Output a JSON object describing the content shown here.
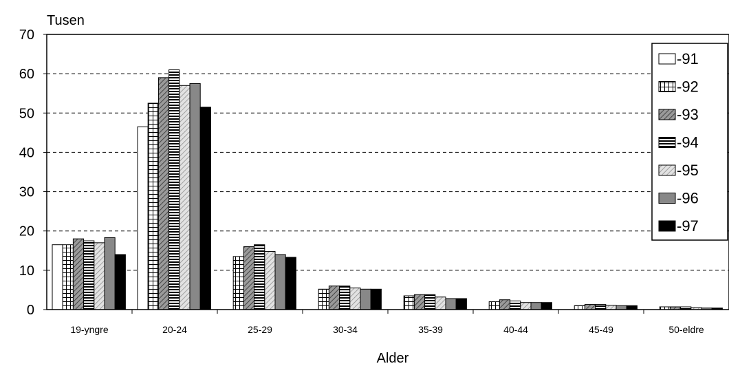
{
  "chart_data": {
    "type": "bar",
    "title": "",
    "unit_label": "Tusen",
    "xlabel": "Alder",
    "ylabel": "",
    "ylim": [
      0,
      70
    ],
    "yticks": [
      "0",
      "10",
      "20",
      "30",
      "40",
      "50",
      "60",
      "70"
    ],
    "grid": "horizontal dashed",
    "legend_position": "right",
    "categories": [
      "19-yngre",
      "20-24",
      "25-29",
      "30-34",
      "35-39",
      "40-44",
      "45-49",
      "50-eldre"
    ],
    "series": [
      {
        "name": "-91",
        "pattern": "white",
        "values": [
          16.5,
          46.5,
          0,
          0,
          0,
          0,
          0,
          0
        ]
      },
      {
        "name": "-92",
        "pattern": "grid",
        "values": [
          16.5,
          52.5,
          13.5,
          5.2,
          3.5,
          2.0,
          1.0,
          0.7
        ]
      },
      {
        "name": "-93",
        "pattern": "gray-diagonal",
        "values": [
          18.0,
          59.0,
          16.0,
          6.0,
          3.8,
          2.5,
          1.3,
          0.7
        ]
      },
      {
        "name": "-94",
        "pattern": "horizontal-lines",
        "values": [
          17.5,
          61.0,
          16.5,
          6.0,
          3.8,
          2.2,
          1.3,
          0.7
        ]
      },
      {
        "name": "-95",
        "pattern": "light-diagonal",
        "values": [
          17.0,
          57.0,
          14.8,
          5.5,
          3.2,
          1.8,
          1.1,
          0.5
        ]
      },
      {
        "name": "-96",
        "pattern": "gray",
        "values": [
          18.3,
          57.5,
          14.0,
          5.2,
          2.8,
          1.8,
          1.0,
          0.4
        ]
      },
      {
        "name": "-97",
        "pattern": "black",
        "values": [
          14.0,
          51.5,
          13.3,
          5.2,
          2.8,
          1.8,
          1.0,
          0.4
        ]
      }
    ]
  }
}
